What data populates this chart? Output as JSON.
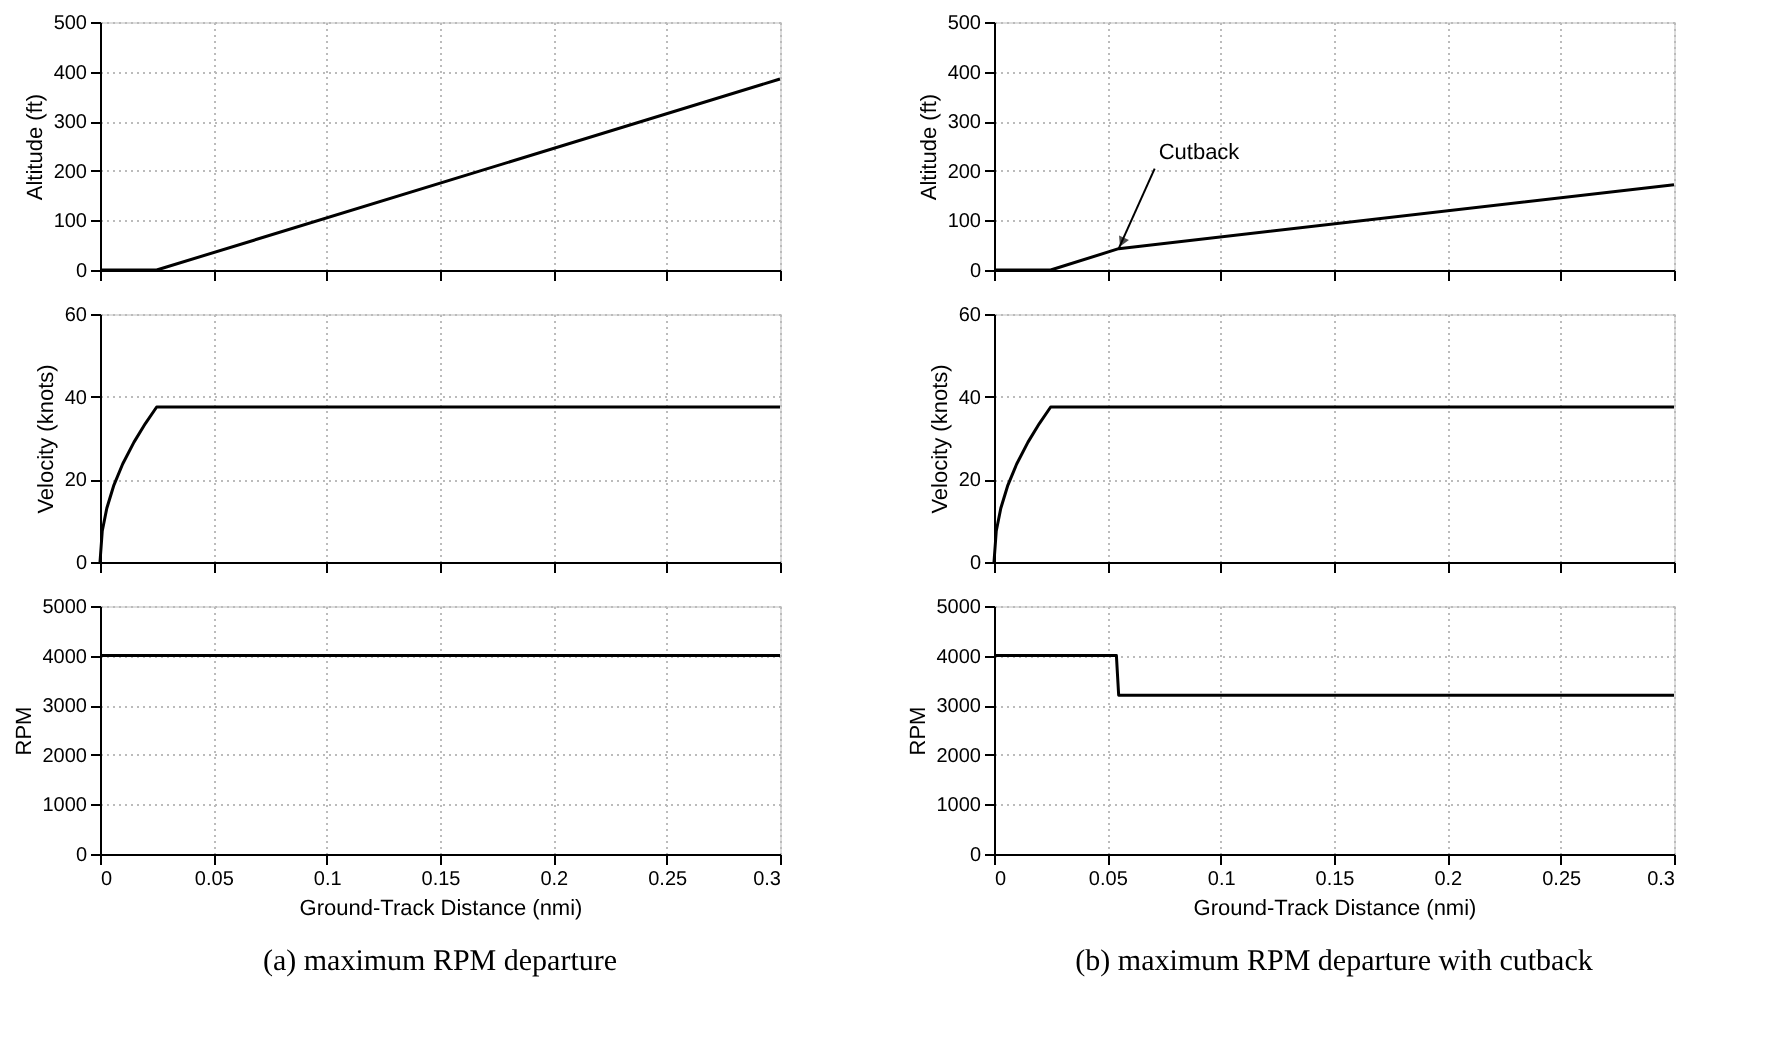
{
  "chart_data": [
    {
      "type": "line",
      "ylabel": "Altitude (ft)",
      "x": [
        0,
        0.025,
        0.3
      ],
      "values": [
        0,
        0,
        385
      ],
      "color": "#000000",
      "xlim": [
        0,
        0.3
      ],
      "xticks": [
        0,
        0.05,
        0.1,
        0.15,
        0.2,
        0.25,
        0.3
      ],
      "ylim": [
        0,
        500
      ],
      "yticks": [
        0,
        100,
        200,
        300,
        400,
        500
      ],
      "grid": true,
      "tick_labels": "y"
    },
    {
      "type": "line",
      "ylabel": "Altitude (ft)",
      "x": [
        0,
        0.025,
        0.055,
        0.3
      ],
      "values": [
        0,
        0,
        43,
        172
      ],
      "color": "#000000",
      "xlim": [
        0,
        0.3
      ],
      "xticks": [
        0,
        0.05,
        0.1,
        0.15,
        0.2,
        0.25,
        0.3
      ],
      "ylim": [
        0,
        500
      ],
      "yticks": [
        0,
        100,
        200,
        300,
        400,
        500
      ],
      "grid": true,
      "tick_labels": "y",
      "annotations": [
        {
          "text": "Cutback",
          "x": 0.055,
          "y": 43
        }
      ]
    },
    {
      "type": "line",
      "ylabel": "Velocity (knots)",
      "x": [
        0,
        0.001,
        0.003,
        0.006,
        0.01,
        0.015,
        0.02,
        0.025,
        0.3
      ],
      "values": [
        0,
        7.5,
        13,
        18.4,
        23.7,
        29,
        33.5,
        37.5,
        37.5
      ],
      "color": "#000000",
      "xlim": [
        0,
        0.3
      ],
      "xticks": [
        0,
        0.05,
        0.1,
        0.15,
        0.2,
        0.25,
        0.3
      ],
      "ylim": [
        0,
        60
      ],
      "yticks": [
        0,
        20,
        40,
        60
      ],
      "grid": true,
      "tick_labels": "y"
    },
    {
      "type": "line",
      "ylabel": "Velocity (knots)",
      "x": [
        0,
        0.001,
        0.003,
        0.006,
        0.01,
        0.015,
        0.02,
        0.025,
        0.3
      ],
      "values": [
        0,
        7.5,
        13,
        18.4,
        23.7,
        29,
        33.5,
        37.5,
        37.5
      ],
      "color": "#000000",
      "xlim": [
        0,
        0.3
      ],
      "xticks": [
        0,
        0.05,
        0.1,
        0.15,
        0.2,
        0.25,
        0.3
      ],
      "ylim": [
        0,
        60
      ],
      "yticks": [
        0,
        20,
        40,
        60
      ],
      "grid": true,
      "tick_labels": "y"
    },
    {
      "type": "line",
      "ylabel": "RPM",
      "xlabel": "Ground-Track Distance (nmi)",
      "x": [
        0,
        0.3
      ],
      "values": [
        4000,
        4000
      ],
      "color": "#000000",
      "xlim": [
        0,
        0.3
      ],
      "xticks": [
        0,
        0.05,
        0.1,
        0.15,
        0.2,
        0.25,
        0.3
      ],
      "ylim": [
        0,
        5000
      ],
      "yticks": [
        0,
        1000,
        2000,
        3000,
        4000,
        5000
      ],
      "grid": true,
      "annotations": [
        "(a) maximum RPM departure"
      ]
    },
    {
      "type": "line",
      "ylabel": "RPM",
      "xlabel": "Ground-Track Distance (nmi)",
      "x": [
        0,
        0.054,
        0.055,
        0.3
      ],
      "values": [
        4000,
        4000,
        3200,
        3200
      ],
      "color": "#000000",
      "xlim": [
        0,
        0.3
      ],
      "xticks": [
        0,
        0.05,
        0.1,
        0.15,
        0.2,
        0.25,
        0.3
      ],
      "ylim": [
        0,
        5000
      ],
      "yticks": [
        0,
        1000,
        2000,
        3000,
        4000,
        5000
      ],
      "grid": true,
      "annotations": [
        "(b) maximum RPM departure with cutback"
      ]
    }
  ]
}
